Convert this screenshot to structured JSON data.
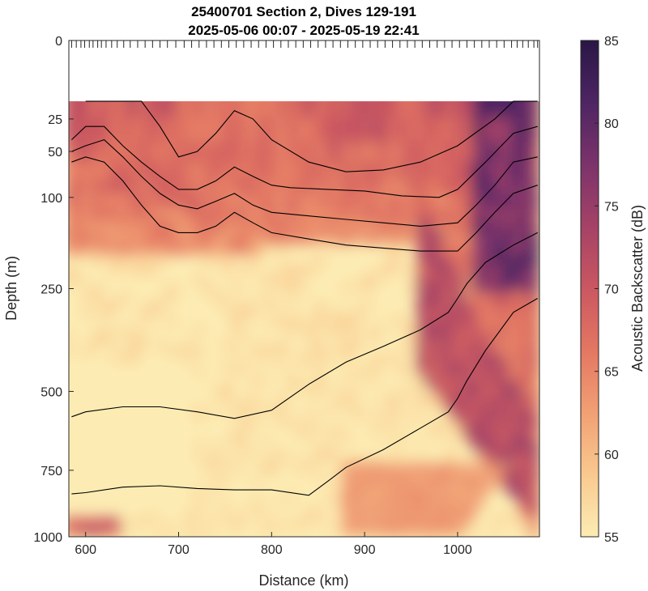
{
  "chart_data": {
    "type": "heatmap",
    "title": "25400701 Section 2, Dives 129-191",
    "subtitle": "2025-05-06 00:07 - 2025-05-19 22:41",
    "xlabel": "Distance (km)",
    "ylabel": "Depth (m)",
    "xlim": [
      582,
      1088
    ],
    "ylim": [
      0,
      1000
    ],
    "y_scale": "sqrt",
    "x_ticks": [
      600,
      700,
      800,
      900,
      1000
    ],
    "y_ticks": [
      0,
      25,
      50,
      100,
      250,
      500,
      750,
      1000
    ],
    "colorbar": {
      "label": "Acoustic Backscatter (dB)",
      "range": [
        55,
        85
      ],
      "ticks": [
        55,
        60,
        65,
        70,
        75,
        80,
        85
      ],
      "colormap": [
        "#fcecb3",
        "#f9c98f",
        "#f1a074",
        "#e47762",
        "#cb5761",
        "#a54266",
        "#7c336b",
        "#4e2563",
        "#2a1646"
      ]
    },
    "surface_gap_depth": 15,
    "dive_positions": [
      585,
      590,
      595,
      599,
      604,
      608,
      613,
      617,
      622,
      628,
      634,
      641,
      648,
      656,
      664,
      672,
      680,
      688,
      697,
      706,
      714,
      722,
      730,
      738,
      746,
      754,
      762,
      770,
      778,
      786,
      794,
      802,
      810,
      818,
      826,
      834,
      842,
      850,
      858,
      866,
      874,
      882,
      890,
      898,
      906,
      914,
      922,
      930,
      938,
      946,
      954,
      962,
      970,
      978,
      986,
      994,
      1002,
      1010,
      1018,
      1026,
      1034,
      1042,
      1050,
      1058,
      1064,
      1070,
      1076,
      1082,
      1086
    ],
    "contours": [
      {
        "x": [
          600,
          640,
          660,
          680,
          700,
          720,
          740,
          760,
          780,
          800,
          840,
          880,
          920,
          960,
          1000,
          1040,
          1060,
          1086
        ],
        "y": [
          15,
          15,
          15,
          30,
          55,
          50,
          35,
          20,
          25,
          40,
          60,
          70,
          68,
          60,
          45,
          25,
          15,
          15
        ]
      },
      {
        "x": [
          585,
          600,
          620,
          640,
          660,
          680,
          700,
          720,
          740,
          760,
          780,
          800,
          820,
          860,
          900,
          940,
          980,
          1000,
          1030,
          1060,
          1086
        ],
        "y": [
          40,
          30,
          30,
          45,
          60,
          75,
          90,
          90,
          80,
          65,
          75,
          85,
          88,
          90,
          92,
          98,
          100,
          90,
          60,
          35,
          30
        ]
      },
      {
        "x": [
          585,
          600,
          620,
          640,
          660,
          680,
          700,
          720,
          740,
          760,
          780,
          800,
          840,
          880,
          920,
          960,
          1000,
          1020,
          1040,
          1060,
          1086
        ],
        "y": [
          50,
          45,
          40,
          55,
          75,
          95,
          110,
          115,
          105,
          95,
          110,
          120,
          125,
          130,
          135,
          140,
          135,
          110,
          85,
          60,
          55
        ]
      },
      {
        "x": [
          585,
          600,
          620,
          640,
          660,
          680,
          700,
          720,
          740,
          760,
          780,
          800,
          840,
          880,
          920,
          960,
          1000,
          1020,
          1040,
          1060,
          1086
        ],
        "y": [
          60,
          55,
          60,
          80,
          110,
          140,
          150,
          150,
          140,
          120,
          135,
          150,
          160,
          170,
          175,
          180,
          180,
          150,
          120,
          95,
          85
        ]
      },
      {
        "x": [
          585,
          600,
          640,
          660,
          680,
          700,
          720,
          740,
          760,
          800,
          840,
          880,
          920,
          960,
          990,
          1010,
          1030,
          1060,
          1086
        ],
        "y": [
          1000,
          1000,
          1000,
          1000,
          1000,
          1000,
          1000,
          1000,
          1000,
          1000,
          1000,
          1000,
          1000,
          1000,
          1000,
          1000,
          1000,
          1000,
          1000
        ]
      },
      {
        "x": [
          585,
          600,
          640,
          680,
          720,
          760,
          800,
          840,
          880,
          920,
          960,
          990,
          1000,
          1010,
          1030,
          1060,
          1086
        ],
        "y": [
          575,
          560,
          545,
          545,
          560,
          580,
          555,
          480,
          420,
          380,
          340,
          300,
          270,
          240,
          200,
          170,
          150
        ]
      },
      {
        "x": [
          585,
          600,
          640,
          680,
          720,
          760,
          800,
          840,
          860,
          880,
          920,
          960,
          990,
          1000,
          1010,
          1030,
          1060,
          1086
        ],
        "y": [
          835,
          830,
          810,
          805,
          815,
          820,
          820,
          840,
          790,
          740,
          680,
          610,
          560,
          520,
          470,
          390,
          300,
          270
        ]
      }
    ]
  }
}
